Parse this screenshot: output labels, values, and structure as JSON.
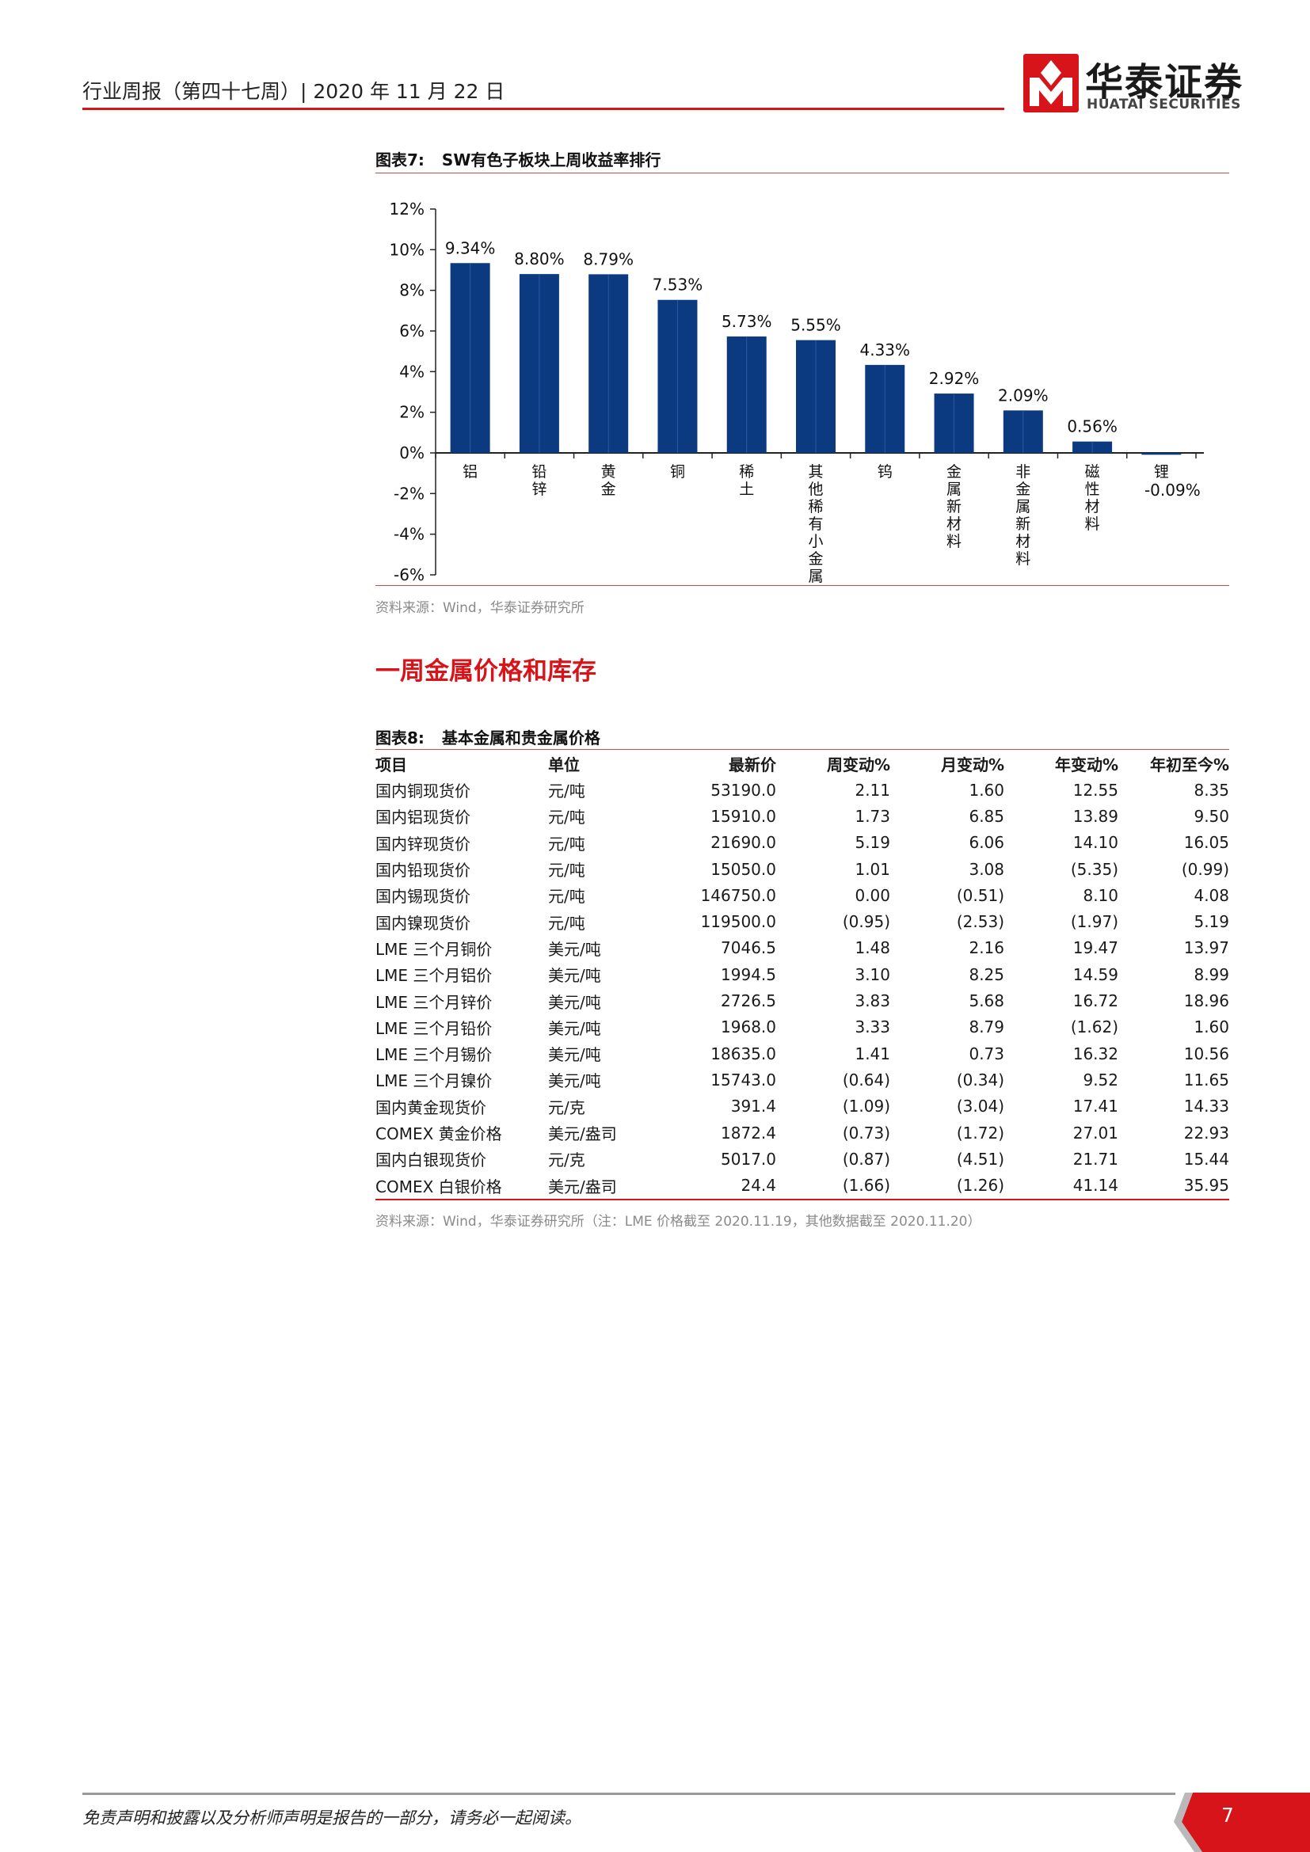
{
  "header": {
    "report_title": "行业周报（第四十七周）| 2020 年 11 月 22 日",
    "brand_cn": "华泰证券",
    "brand_en": "HUATAI SECURITIES"
  },
  "figure7": {
    "label": "图表7:",
    "title": "SW有色子板块上周收益率排行",
    "source": "资料来源：Wind，华泰证券研究所"
  },
  "chart_data": {
    "type": "bar",
    "categories": [
      "铝",
      "铅锌",
      "黄金",
      "铜",
      "稀土",
      "其他稀有小金属",
      "钨",
      "金属新材料",
      "非金属新材料",
      "磁性材料",
      "锂"
    ],
    "values": [
      9.34,
      8.8,
      8.79,
      7.53,
      5.73,
      5.55,
      4.33,
      2.92,
      2.09,
      0.56,
      -0.09
    ],
    "data_labels": [
      "9.34%",
      "8.80%",
      "8.79%",
      "7.53%",
      "5.73%",
      "5.55%",
      "4.33%",
      "2.92%",
      "2.09%",
      "0.56%",
      "-0.09%"
    ],
    "y_ticks": [
      "12%",
      "10%",
      "8%",
      "6%",
      "4%",
      "2%",
      "0%",
      "-2%",
      "-4%",
      "-6%"
    ],
    "ylim": [
      -6,
      12
    ],
    "bar_color": "#0b3a80",
    "grid": false
  },
  "section": {
    "title": "一周金属价格和库存"
  },
  "figure8": {
    "label": "图表8:",
    "title": "基本金属和贵金属价格",
    "columns": [
      "项目",
      "单位",
      "最新价",
      "周变动%",
      "月变动%",
      "年变动%",
      "年初至今%"
    ],
    "rows": [
      [
        "国内铜现货价",
        "元/吨",
        "53190.0",
        "2.11",
        "1.60",
        "12.55",
        "8.35"
      ],
      [
        "国内铝现货价",
        "元/吨",
        "15910.0",
        "1.73",
        "6.85",
        "13.89",
        "9.50"
      ],
      [
        "国内锌现货价",
        "元/吨",
        "21690.0",
        "5.19",
        "6.06",
        "14.10",
        "16.05"
      ],
      [
        "国内铅现货价",
        "元/吨",
        "15050.0",
        "1.01",
        "3.08",
        "(5.35)",
        "(0.99)"
      ],
      [
        "国内锡现货价",
        "元/吨",
        "146750.0",
        "0.00",
        "(0.51)",
        "8.10",
        "4.08"
      ],
      [
        "国内镍现货价",
        "元/吨",
        "119500.0",
        "(0.95)",
        "(2.53)",
        "(1.97)",
        "5.19"
      ],
      [
        "LME 三个月铜价",
        "美元/吨",
        "7046.5",
        "1.48",
        "2.16",
        "19.47",
        "13.97"
      ],
      [
        "LME 三个月铝价",
        "美元/吨",
        "1994.5",
        "3.10",
        "8.25",
        "14.59",
        "8.99"
      ],
      [
        "LME 三个月锌价",
        "美元/吨",
        "2726.5",
        "3.83",
        "5.68",
        "16.72",
        "18.96"
      ],
      [
        "LME 三个月铅价",
        "美元/吨",
        "1968.0",
        "3.33",
        "8.79",
        "(1.62)",
        "1.60"
      ],
      [
        "LME 三个月锡价",
        "美元/吨",
        "18635.0",
        "1.41",
        "0.73",
        "16.32",
        "10.56"
      ],
      [
        "LME 三个月镍价",
        "美元/吨",
        "15743.0",
        "(0.64)",
        "(0.34)",
        "9.52",
        "11.65"
      ],
      [
        "国内黄金现货价",
        "元/克",
        "391.4",
        "(1.09)",
        "(3.04)",
        "17.41",
        "14.33"
      ],
      [
        "COMEX 黄金价格",
        "美元/盎司",
        "1872.4",
        "(0.73)",
        "(1.72)",
        "27.01",
        "22.93"
      ],
      [
        "国内白银现货价",
        "元/克",
        "5017.0",
        "(0.87)",
        "(4.51)",
        "21.71",
        "15.44"
      ],
      [
        "COMEX 白银价格",
        "美元/盎司",
        "24.4",
        "(1.66)",
        "(1.26)",
        "41.14",
        "35.95"
      ]
    ],
    "source": "资料来源：Wind，华泰证券研究所（注：LME 价格截至 2020.11.19，其他数据截至 2020.11.20）"
  },
  "footer": {
    "disclaimer": "免责声明和披露以及分析师声明是报告的一部分，请务必一起阅读。",
    "page_number": "7"
  },
  "colors": {
    "accent_red": "#d7141a",
    "rule_red": "#c0504d",
    "bar_navy": "#0b3a80"
  }
}
